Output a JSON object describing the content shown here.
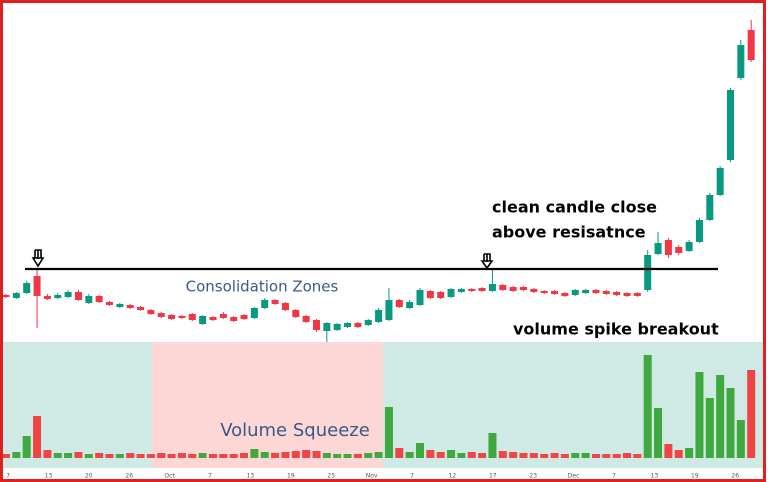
{
  "chart_data": {
    "type": "candlestick",
    "annotations": [
      "Consolidation Zones",
      "clean candle close",
      "above resisatnce",
      "volume spike breakout",
      "Volume Squeeze"
    ],
    "x_tick_labels": [
      "7",
      "13",
      "20",
      "26",
      "Oct",
      "7",
      "13",
      "19",
      "25",
      "Nov",
      "7",
      "12",
      "17",
      "23",
      "Dec",
      "7",
      "13",
      "19",
      "26"
    ],
    "open": [
      45,
      42,
      47,
      64,
      44,
      42,
      43,
      48,
      37,
      44,
      38,
      33,
      35,
      33,
      30,
      27,
      25,
      24,
      26,
      16,
      23,
      26,
      23,
      25,
      22,
      32,
      40,
      37,
      30,
      24,
      20,
      9,
      10,
      13,
      17,
      15,
      18,
      20,
      40,
      32,
      35,
      49,
      48,
      43,
      48,
      51,
      52,
      49,
      55,
      53,
      53,
      51,
      49,
      49,
      47,
      45,
      47,
      50,
      49,
      48,
      47,
      47,
      50,
      86,
      100,
      93,
      89,
      98,
      120,
      145,
      180,
      262,
      310
    ],
    "high": [
      46,
      48,
      59,
      72,
      46,
      47,
      50,
      50,
      46,
      45,
      39,
      37,
      36,
      34,
      31,
      28,
      26,
      25,
      27,
      25,
      24,
      28,
      24,
      26,
      33,
      42,
      41,
      38,
      31,
      25,
      21,
      18,
      17,
      18,
      18,
      21,
      32,
      52,
      41,
      40,
      52,
      50,
      49,
      52,
      52,
      52,
      53,
      70,
      56,
      54,
      54,
      52,
      50,
      50,
      48,
      51,
      51,
      51,
      50,
      49,
      48,
      48,
      90,
      108,
      102,
      95,
      100,
      122,
      147,
      174,
      252,
      300,
      320
    ],
    "low": [
      42,
      41,
      46,
      12,
      40,
      41,
      42,
      39,
      36,
      37,
      34,
      32,
      31,
      29,
      25,
      22,
      20,
      21,
      19,
      15,
      19,
      21,
      18,
      20,
      21,
      31,
      35,
      29,
      22,
      17,
      8,
      -2,
      9,
      12,
      12,
      14,
      17,
      19,
      32,
      31,
      34,
      41,
      41,
      42,
      47,
      48,
      48,
      48,
      49,
      48,
      49,
      47,
      46,
      45,
      43,
      44,
      46,
      46,
      45,
      44,
      43,
      43,
      48,
      85,
      82,
      85,
      88,
      97,
      119,
      144,
      178,
      260,
      278
    ],
    "close": [
      43,
      47,
      57,
      44,
      41,
      45,
      48,
      40,
      44,
      38,
      35,
      36,
      32,
      30,
      26,
      23,
      21,
      22,
      20,
      24,
      20,
      22,
      19,
      21,
      32,
      40,
      36,
      30,
      23,
      18,
      10,
      17,
      16,
      17,
      13,
      20,
      30,
      40,
      33,
      38,
      50,
      42,
      42,
      51,
      51,
      49,
      49,
      56,
      50,
      49,
      50,
      48,
      47,
      46,
      44,
      50,
      50,
      47,
      46,
      45,
      44,
      44,
      85,
      97,
      85,
      87,
      98,
      120,
      145,
      172,
      250,
      295,
      280
    ],
    "volume": [
      4,
      6,
      22,
      42,
      8,
      5,
      5,
      6,
      4,
      5,
      4,
      4,
      5,
      4,
      4,
      5,
      4,
      5,
      4,
      5,
      4,
      4,
      4,
      5,
      9,
      6,
      5,
      6,
      7,
      8,
      7,
      5,
      4,
      4,
      4,
      5,
      6,
      51,
      10,
      6,
      15,
      8,
      6,
      8,
      5,
      6,
      5,
      25,
      7,
      6,
      5,
      5,
      4,
      5,
      4,
      5,
      5,
      4,
      4,
      4,
      5,
      4,
      103,
      50,
      14,
      8,
      10,
      86,
      60,
      83,
      70,
      38,
      88
    ],
    "resistance": 71,
    "ylim": [
      -10,
      330
    ],
    "y2lim": [
      0,
      120
    ],
    "up_color": "#089981",
    "down_color": "#f23645",
    "volume_up_color": "#3fa83f",
    "volume_down_color": "#f04545"
  }
}
